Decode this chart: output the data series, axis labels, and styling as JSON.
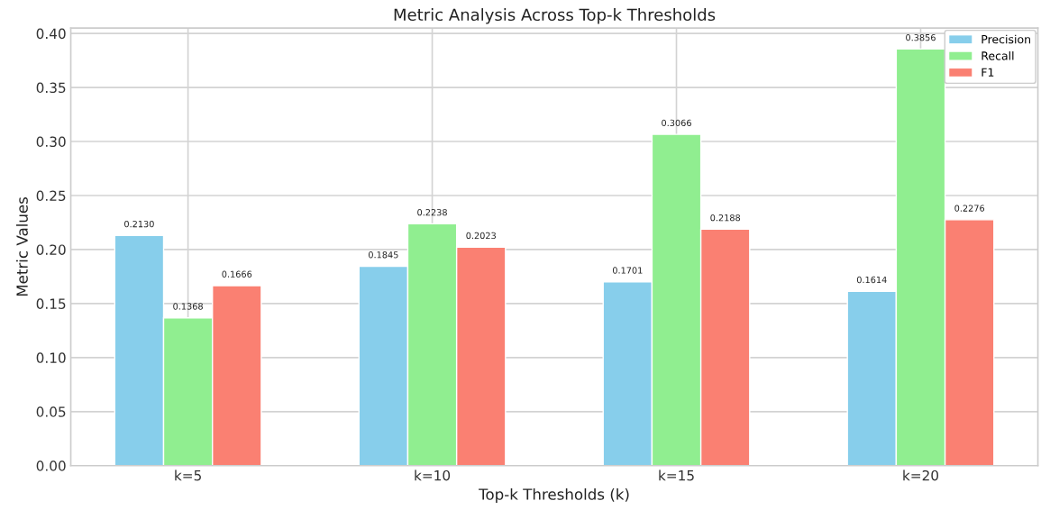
{
  "chart_data": {
    "type": "bar",
    "title": "Metric Analysis Across Top-k Thresholds",
    "xlabel": "Top-k Thresholds (k)",
    "ylabel": "Metric Values",
    "categories": [
      "k=5",
      "k=10",
      "k=15",
      "k=20"
    ],
    "series": [
      {
        "name": "Precision",
        "color": "#87ceeb",
        "values": [
          0.213,
          0.1845,
          0.1701,
          0.1614
        ],
        "value_labels": [
          "0.2130",
          "0.1845",
          "0.1701",
          "0.1614"
        ]
      },
      {
        "name": "Recall",
        "color": "#90ee90",
        "values": [
          0.1368,
          0.2238,
          0.3066,
          0.3856
        ],
        "value_labels": [
          "0.1368",
          "0.2238",
          "0.3066",
          "0.3856"
        ]
      },
      {
        "name": "F1",
        "color": "#fa8072",
        "values": [
          0.1666,
          0.2023,
          0.2188,
          0.2276
        ],
        "value_labels": [
          "0.1666",
          "0.2023",
          "0.2188",
          "0.2276"
        ]
      }
    ],
    "ylim": [
      0,
      0.405
    ],
    "yticks": [
      {
        "value": 0,
        "label": "0.00"
      },
      {
        "value": 0.05,
        "label": "0.05"
      },
      {
        "value": 0.1,
        "label": "0.10"
      },
      {
        "value": 0.15,
        "label": "0.15"
      },
      {
        "value": 0.2,
        "label": "0.20"
      },
      {
        "value": 0.25,
        "label": "0.25"
      },
      {
        "value": 0.3,
        "label": "0.30"
      },
      {
        "value": 0.35,
        "label": "0.35"
      },
      {
        "value": 0.4,
        "label": "0.40"
      }
    ],
    "grid": true,
    "legend": "top right"
  }
}
